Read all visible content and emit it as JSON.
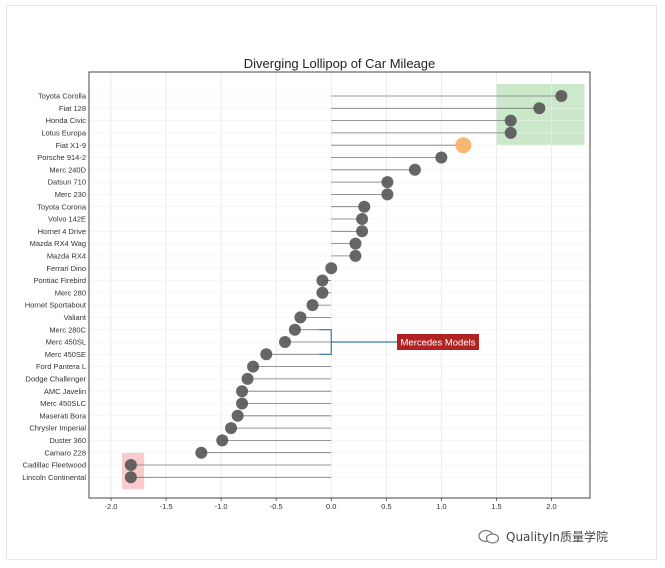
{
  "chart_data": {
    "type": "lollipop",
    "title": "Diverging Lollipop of Car Mileage",
    "xlabel": "",
    "ylabel": "",
    "xlim": [
      -2.2,
      2.35
    ],
    "xticks": [
      "-2.0",
      "-1.5",
      "-1.0",
      "-0.5",
      "0.0",
      "0.5",
      "1.0",
      "1.5",
      "2.0"
    ],
    "grid": true,
    "categories": [
      "Toyota Corolla",
      "Fiat 128",
      "Honda Civic",
      "Lotus Europa",
      "Fiat X1-9",
      "Porsche 914-2",
      "Merc 240D",
      "Datsun 710",
      "Merc 230",
      "Toyota Corona",
      "Volvo 142E",
      "Hornet 4 Drive",
      "Mazda RX4 Wag",
      "Mazda RX4",
      "Ferrari Dino",
      "Pontiac Firebird",
      "Merc 280",
      "Hornet Sportabout",
      "Valiant",
      "Merc 280C",
      "Merc 450SL",
      "Merc 450SE",
      "Ford Pantera L",
      "Dodge Challenger",
      "AMC Javelin",
      "Merc 450SLC",
      "Maserati Bora",
      "Chrysler Imperial",
      "Duster 360",
      "Camaro Z28",
      "Cadillac Fleetwood",
      "Lincoln Continental"
    ],
    "values": [
      2.09,
      1.89,
      1.63,
      1.63,
      1.2,
      1.0,
      0.76,
      0.51,
      0.51,
      0.3,
      0.28,
      0.28,
      0.22,
      0.22,
      0.0,
      -0.08,
      -0.08,
      -0.17,
      -0.28,
      -0.33,
      -0.42,
      -0.59,
      -0.71,
      -0.76,
      -0.81,
      -0.81,
      -0.85,
      -0.91,
      -0.99,
      -1.18,
      -1.82,
      -1.82
    ],
    "highlight": {
      "category": "Fiat X1-9",
      "color": "#f5b36b"
    },
    "point_color": "#555555",
    "regions": [
      {
        "x": [
          1.5,
          2.3
        ],
        "y_from": "Toyota Corolla",
        "y_to": "Lotus Europa",
        "color": "#a8d8a8"
      },
      {
        "x": [
          -1.9,
          -1.7
        ],
        "y_from": "Cadillac Fleetwood",
        "y_to": "Lincoln Continental",
        "color": "#f5a8ad"
      }
    ],
    "annotation": {
      "text": "Mercedes Models",
      "bg": "#b22222",
      "bracket_x": 0.0,
      "y_from": "Merc 280C",
      "y_to": "Merc 450SE"
    }
  },
  "watermark": "QualityIn质量学院"
}
